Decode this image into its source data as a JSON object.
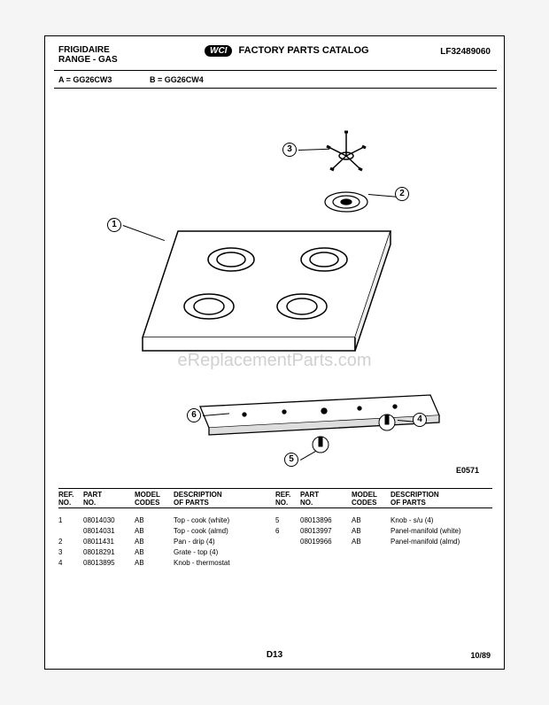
{
  "header": {
    "brand": "FRIGIDAIRE",
    "product": "RANGE - GAS",
    "catalog_label_logo": "WCI",
    "catalog_label": "FACTORY PARTS CATALOG",
    "doc_number": "LF32489060"
  },
  "models": {
    "a_label": "A = GG26CW3",
    "b_label": "B = GG26CW4"
  },
  "diagram": {
    "code": "E0571",
    "callouts": [
      "1",
      "2",
      "3",
      "4",
      "5",
      "6"
    ]
  },
  "watermark": "eReplacementParts.com",
  "table": {
    "headers": {
      "ref": {
        "l1": "REF.",
        "l2": "NO."
      },
      "part": {
        "l1": "PART",
        "l2": "NO."
      },
      "model": {
        "l1": "MODEL",
        "l2": "CODES"
      },
      "desc": {
        "l1": "DESCRIPTION",
        "l2": "OF PARTS"
      }
    },
    "left": [
      {
        "ref": "1",
        "part": "08014030",
        "model": "AB",
        "desc": "Top - cook (white)"
      },
      {
        "ref": "",
        "part": "08014031",
        "model": "AB",
        "desc": "Top - cook (almd)"
      },
      {
        "ref": "2",
        "part": "08011431",
        "model": "AB",
        "desc": "Pan - drip (4)"
      },
      {
        "ref": "3",
        "part": "08018291",
        "model": "AB",
        "desc": "Grate - top (4)"
      },
      {
        "ref": "4",
        "part": "08013895",
        "model": "AB",
        "desc": "Knob - thermostat"
      }
    ],
    "right": [
      {
        "ref": "5",
        "part": "08013896",
        "model": "AB",
        "desc": "Knob - s/u (4)"
      },
      {
        "ref": "6",
        "part": "08013997",
        "model": "AB",
        "desc": "Panel-manifold (white)"
      },
      {
        "ref": "",
        "part": "08019966",
        "model": "AB",
        "desc": "Panel-manifold (almd)"
      }
    ]
  },
  "footer": {
    "page": "D13",
    "date": "10/89"
  }
}
